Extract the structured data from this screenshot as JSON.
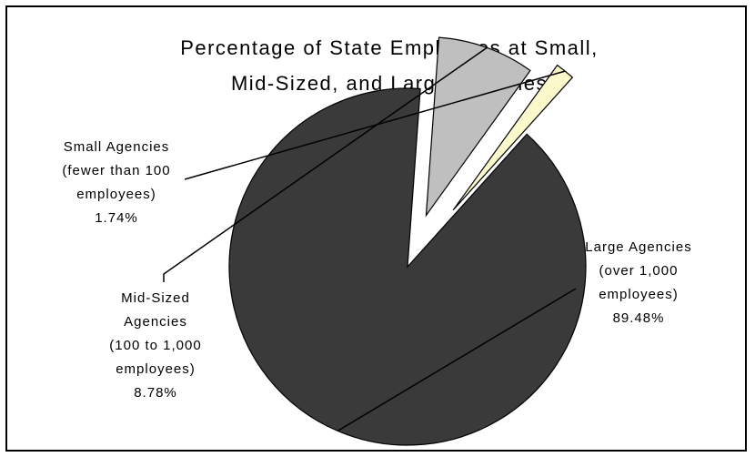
{
  "chart_data": {
    "type": "pie",
    "title_lines": [
      "Percentage of State Employees at Small,",
      "Mid-Sized, and Large Agencies"
    ],
    "slices": [
      {
        "name": "Large Agencies",
        "value": 89.48,
        "color": "#3a3a3a",
        "label_lines": [
          "Large Agencies",
          "(over 1,000",
          "employees)",
          "89.48%"
        ]
      },
      {
        "name": "Mid-Sized Agencies",
        "value": 8.78,
        "color": "#bfbfbf",
        "label_lines": [
          "Mid-Sized",
          "Agencies",
          "(100 to 1,000",
          "employees)",
          "8.78%"
        ]
      },
      {
        "name": "Small Agencies",
        "value": 1.74,
        "color": "#fbf8cc",
        "label_lines": [
          "Small Agencies",
          "(fewer than 100",
          "employees)",
          "1.74%"
        ]
      }
    ],
    "legend": "none"
  }
}
